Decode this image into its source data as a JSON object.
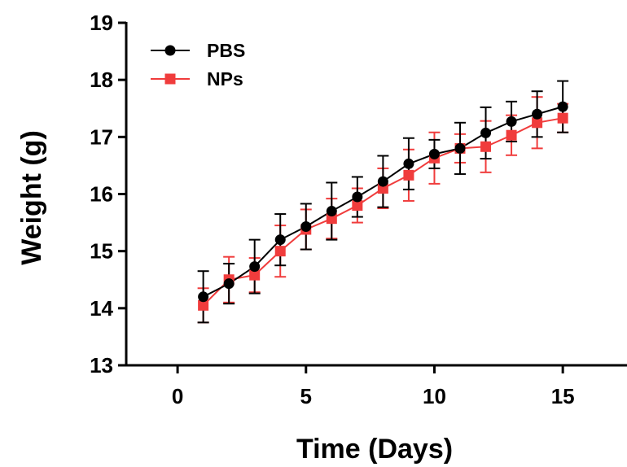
{
  "chart_data": {
    "type": "line",
    "xlabel": "Time (Days)",
    "ylabel": "Weight (g)",
    "xlim": [
      -2,
      17.5
    ],
    "ylim": [
      13,
      19
    ],
    "xticks": [
      0,
      5,
      10,
      15
    ],
    "yticks": [
      13,
      14,
      15,
      16,
      17,
      18,
      19
    ],
    "x": [
      1,
      2,
      3,
      4,
      5,
      6,
      7,
      8,
      9,
      10,
      11,
      12,
      13,
      14,
      15
    ],
    "grid": false,
    "legend_position": "top-left",
    "series": [
      {
        "name": "PBS",
        "color": "#000000",
        "marker": "circle",
        "values": [
          14.2,
          14.43,
          14.73,
          15.2,
          15.43,
          15.7,
          15.95,
          16.22,
          16.53,
          16.7,
          16.8,
          17.07,
          17.27,
          17.4,
          17.53
        ],
        "errors": [
          0.45,
          0.35,
          0.47,
          0.45,
          0.4,
          0.5,
          0.35,
          0.45,
          0.45,
          0.25,
          0.45,
          0.45,
          0.35,
          0.4,
          0.45
        ]
      },
      {
        "name": "NPs",
        "color": "#f03c3c",
        "marker": "square",
        "values": [
          14.05,
          14.5,
          14.58,
          15.0,
          15.38,
          15.57,
          15.8,
          16.1,
          16.33,
          16.63,
          16.8,
          16.83,
          17.03,
          17.25,
          17.33
        ],
        "errors": [
          0.3,
          0.4,
          0.3,
          0.45,
          0.35,
          0.35,
          0.3,
          0.35,
          0.45,
          0.45,
          0.25,
          0.45,
          0.35,
          0.45,
          0.25
        ]
      }
    ]
  }
}
